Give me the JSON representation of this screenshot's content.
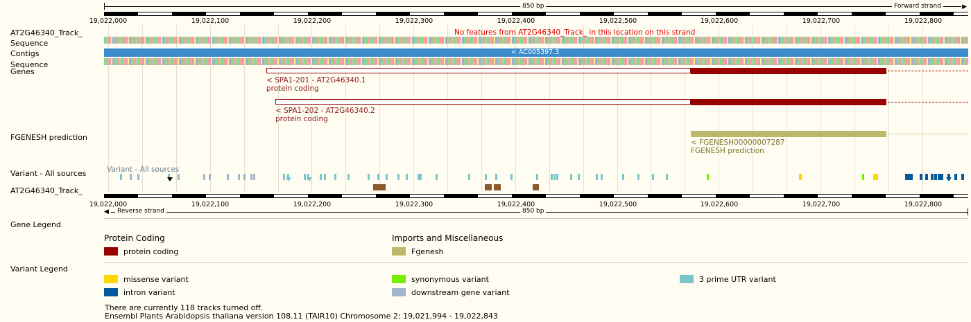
{
  "top_ruler": {
    "length_label": "850 bp",
    "strand_label": "Forward strand"
  },
  "bottom_ruler": {
    "length_label": "850 bp",
    "strand_label": "Reverse strand"
  },
  "coord_ticks": [
    "19,022,000",
    "19,022,100",
    "19,022,200",
    "19,022,300",
    "19,022,400",
    "19,022,500",
    "19,022,600",
    "19,022,700",
    "19,022,800"
  ],
  "tracks": {
    "at_track_label": "AT2G46340_Track_",
    "sequence_label": "Sequence",
    "contigs_label": "Contigs",
    "sequence2_label": "Sequence",
    "genes_label": "Genes",
    "fgenesh_label": "FGENESH prediction",
    "variant_label": "Variant - All sources",
    "at_track2_label": "AT2G46340_Track_"
  },
  "no_features_msg": "No features from AT2G46340_Track_ in this location on this strand",
  "contig_name": "< AC005397.3",
  "transcripts": [
    {
      "name": "< SPA1-201 - AT2G46340.1",
      "biotype": "protein coding"
    },
    {
      "name": "< SPA1-202 - AT2G46340.2",
      "biotype": "protein coding"
    }
  ],
  "fgenesh": {
    "name": "< FGENESH00000007287",
    "type": "FGENESH prediction"
  },
  "variant_sources_text": "Variant - All sources",
  "legend": {
    "gene_legend_title": "Gene Legend",
    "protein_coding_heading": "Protein Coding",
    "protein_coding_item": "protein coding",
    "imports_heading": "Imports and Miscellaneous",
    "fgenesh_item": "Fgenesh",
    "variant_legend_title": "Variant Legend",
    "missense": "missense variant",
    "synonymous": "synonymous variant",
    "utr3": "3 prime UTR variant",
    "intron": "intron variant",
    "downstream": "downstream gene variant"
  },
  "colors": {
    "protein_coding": "#990000",
    "fgenesh": "#bdb76b",
    "contig": "#3b8ccd",
    "missense": "#ffd700",
    "synonymous": "#76ee00",
    "utr3": "#7ac5cd",
    "intron": "#02599c",
    "downstream": "#a2b5cd"
  },
  "footer": {
    "tracks_off": "There are currently 118 tracks turned off.",
    "version": "Ensembl Plants Arabidopsis thaliana version 108.11 (TAIR10) Chromosome 2: 19,021,994 - 19,022,843"
  }
}
